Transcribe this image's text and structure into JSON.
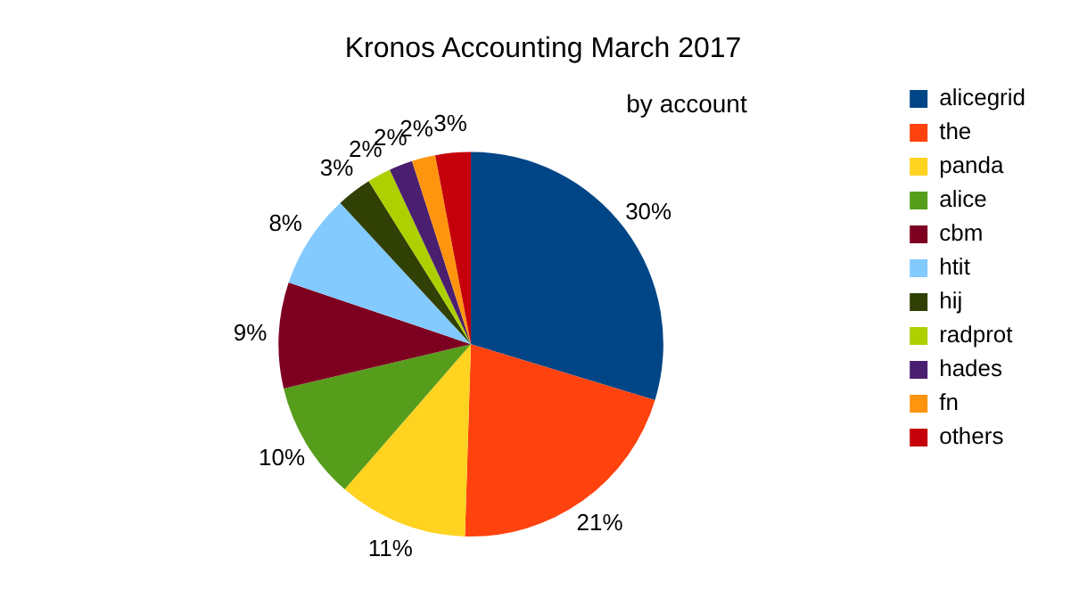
{
  "chart_data": {
    "type": "pie",
    "title": "Kronos Accounting March 2017",
    "subtitle": "by account",
    "categories": [
      "alicegrid",
      "the",
      "panda",
      "alice",
      "cbm",
      "htit",
      "hij",
      "radprot",
      "hades",
      "fn",
      "others"
    ],
    "values": [
      30,
      21,
      11,
      10,
      9,
      8,
      3,
      2,
      2,
      2,
      3
    ],
    "colors": [
      "#004586",
      "#ff420e",
      "#ffd320",
      "#579d1c",
      "#7e0021",
      "#83caff",
      "#314004",
      "#aecf00",
      "#4b1f6f",
      "#ff950e",
      "#c5000b"
    ],
    "value_labels": [
      "30%",
      "21%",
      "11%",
      "10%",
      "9%",
      "8%",
      "3%",
      "2%",
      "2%",
      "2%",
      "3%"
    ],
    "legend": "right"
  }
}
